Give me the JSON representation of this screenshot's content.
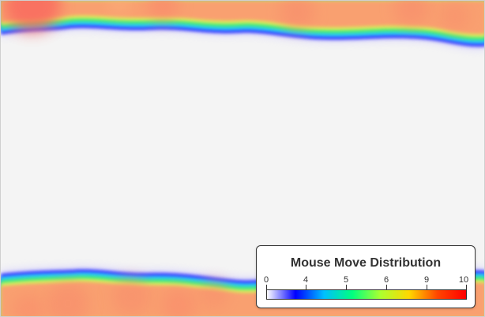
{
  "legend": {
    "title": "Mouse Move Distribution",
    "ticks": [
      "0",
      "4",
      "5",
      "6",
      "9",
      "10"
    ],
    "gradient": [
      "#ffffff",
      "#0000ff",
      "#00bfff",
      "#00ff7f",
      "#adff2f",
      "#ffd700",
      "#ff4500",
      "#ff0000"
    ]
  },
  "heatmap": {
    "background": "#f4f4f4",
    "fill_color": "#f9a070",
    "hotspot_color": "#f96a5e",
    "bands": [
      "top",
      "bottom"
    ]
  }
}
